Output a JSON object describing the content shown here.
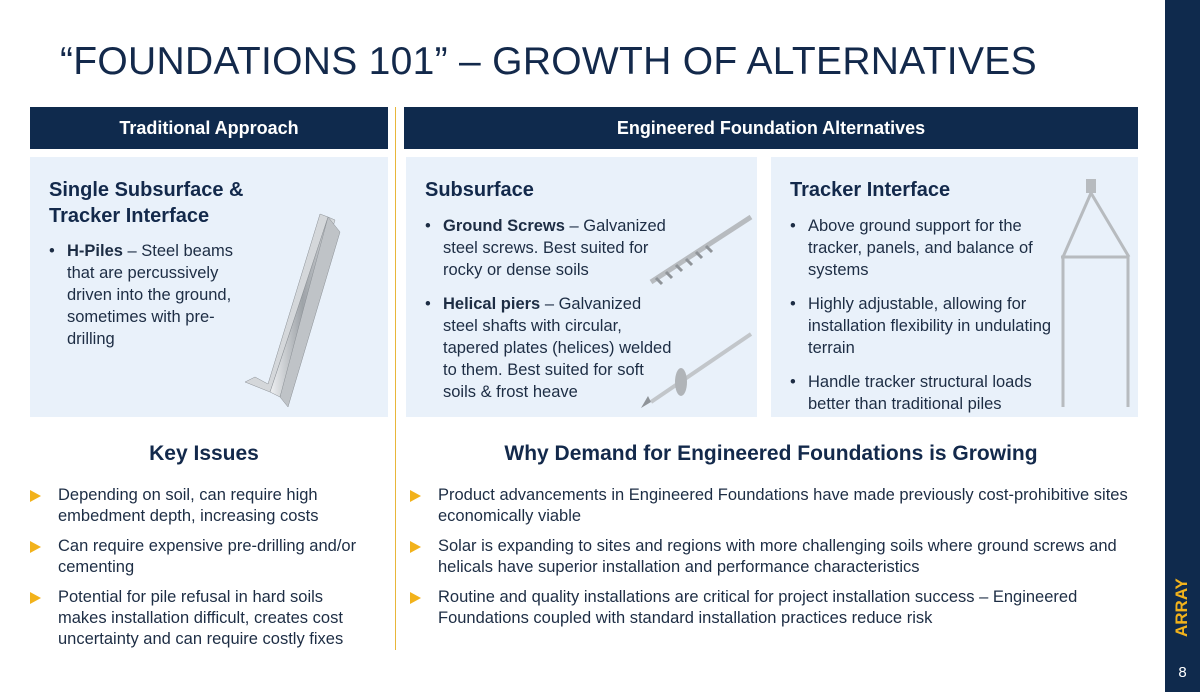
{
  "title": "“FOUNDATIONS 101” – GROWTH OF ALTERNATIVES",
  "headers": [
    "Traditional Approach",
    "Engineered Foundation Alternatives"
  ],
  "panels": [
    {
      "title": "Single Subsurface & Tracker Interface",
      "bullets": [
        {
          "term": "H-Piles",
          "text": "– Steel beams that are percussively driven into the ground, sometimes with pre-drilling"
        }
      ]
    },
    {
      "title": "Subsurface",
      "bullets": [
        {
          "term": "Ground Screws",
          "text": "– Galvanized steel screws.  Best suited for rocky or dense soils"
        },
        {
          "term": "Helical piers",
          "text": "– Galvanized steel shafts with circular, tapered plates (helices) welded to them.  Best suited for soft soils & frost heave"
        }
      ]
    },
    {
      "title": "Tracker Interface",
      "bullets": [
        "Above ground support for the tracker, panels, and balance of systems",
        "Highly adjustable, allowing for installation flexibility in undulating terrain",
        "Handle tracker structural loads better than traditional piles"
      ]
    }
  ],
  "sections": [
    {
      "title": "Key Issues",
      "items": [
        "Depending on soil, can require high embedment depth, increasing costs",
        "Can require expensive pre-drilling and/or cementing",
        "Potential for pile refusal in hard soils makes installation difficult, creates cost uncertainty and can require costly fixes"
      ]
    },
    {
      "title": "Why Demand for Engineered Foundations is Growing",
      "items": [
        "Product advancements in Engineered Foundations have made previously cost-prohibitive sites economically viable",
        "Solar is expanding to sites and regions with more challenging soils where ground screws and helicals have superior installation and performance characteristics",
        "Routine and quality installations are critical for project installation success – Engineered Foundations coupled with standard installation practices reduce risk"
      ]
    }
  ],
  "footer": {
    "brand": "ARRAY",
    "page": "8"
  }
}
